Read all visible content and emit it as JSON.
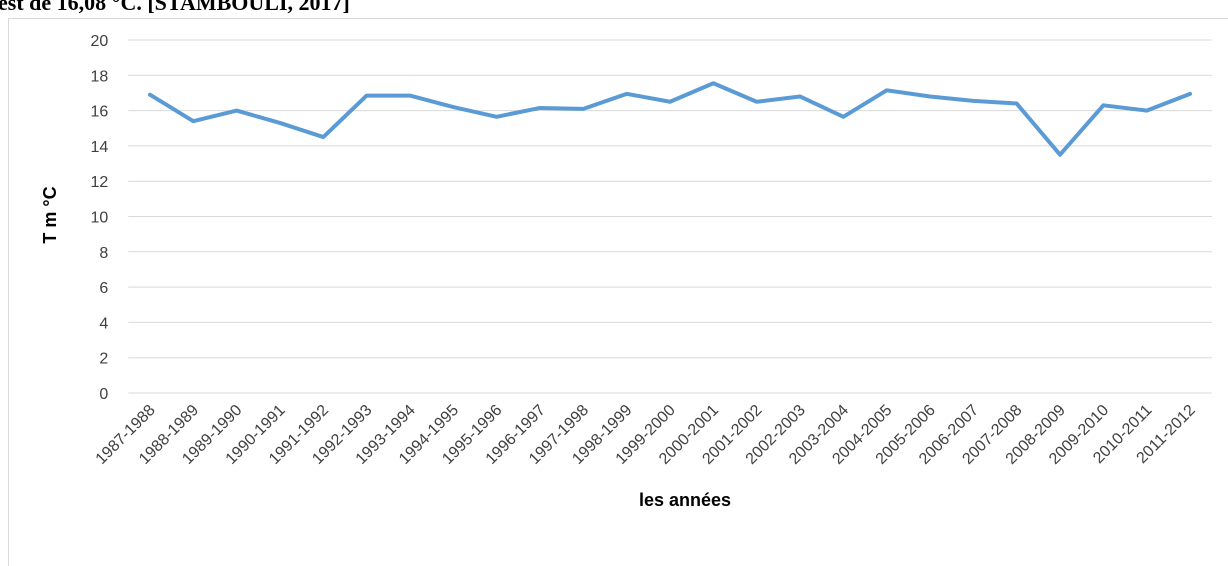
{
  "caption": "est de 16,08 °C. [STAMBOULI, 2017]",
  "chart_data": {
    "type": "line",
    "xlabel": "les années",
    "ylabel": "T m °C",
    "categories": [
      "1987-1988",
      "1988-1989",
      "1989-1990",
      "1990-1991",
      "1991-1992",
      "1992-1993",
      "1993-1994",
      "1994-1995",
      "1995-1996",
      "1996-1997",
      "1997-1998",
      "1998-1999",
      "1999-2000",
      "2000-2001",
      "2001-2002",
      "2002-2003",
      "2003-2004",
      "2004-2005",
      "2005-2006",
      "2006-2007",
      "2007-2008",
      "2008-2009",
      "2009-2010",
      "2010-2011",
      "2011-2012"
    ],
    "series": [
      {
        "name": "T m °C",
        "color": "#5b9bd5",
        "values": [
          16.9,
          15.4,
          16.0,
          15.3,
          14.5,
          16.85,
          16.85,
          16.2,
          15.65,
          16.15,
          16.1,
          16.95,
          16.5,
          17.55,
          16.5,
          16.8,
          15.65,
          17.15,
          16.8,
          16.55,
          16.4,
          13.5,
          16.3,
          16.0,
          16.95
        ]
      }
    ],
    "ylim": [
      0,
      20
    ],
    "yticks": [
      0,
      2,
      4,
      6,
      8,
      10,
      12,
      14,
      16,
      18,
      20
    ],
    "grid": true
  }
}
